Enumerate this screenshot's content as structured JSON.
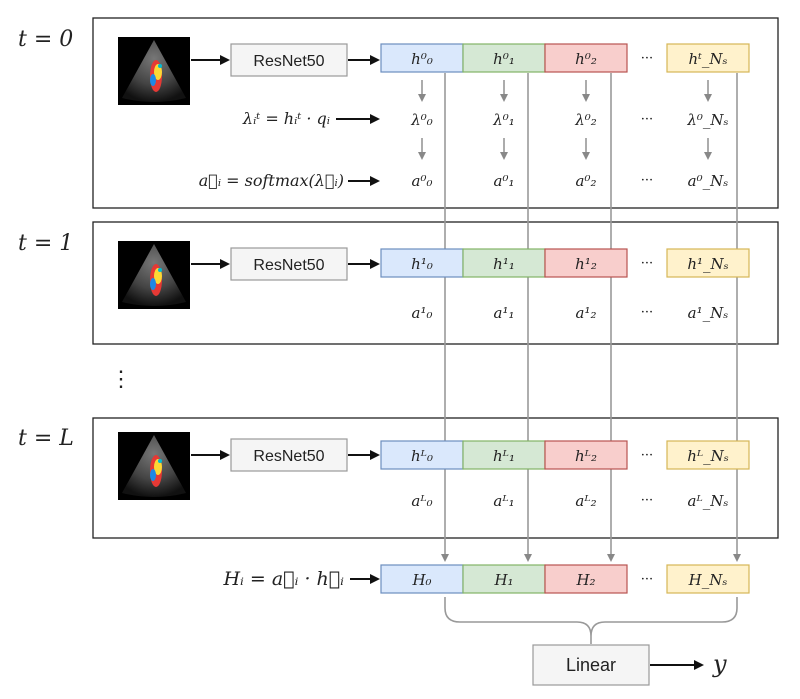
{
  "colors": {
    "blue_fill": "#dae8fc",
    "blue_stroke": "#6c8ebf",
    "green_fill": "#d5e8d4",
    "green_stroke": "#82b366",
    "red_fill": "#f8cecc",
    "red_stroke": "#b85450",
    "yellow_fill": "#fff2cc",
    "yellow_stroke": "#d6b656",
    "resnet_fill": "#f5f5f5",
    "resnet_stroke": "#999999",
    "frame_stroke": "#222222",
    "arrow": "#888888"
  },
  "encoder_label": "ResNet50",
  "ellipsis_h": "···",
  "ellipsis_v": "⋮",
  "steps": [
    {
      "t_label": "t = 0",
      "h": [
        "h⁰₀",
        "h⁰₁",
        "h⁰₂",
        "hᵗ_Nₛ"
      ],
      "lambda_formula": "λᵢᵗ = hᵢᵗ · qᵢ",
      "lambdas": [
        "λ⁰₀",
        "λ⁰₁",
        "λ⁰₂",
        "λ⁰_Nₛ"
      ],
      "a_formula": "a⃗ᵢ = softmax(λ⃗ᵢ)",
      "a": [
        "a⁰₀",
        "a⁰₁",
        "a⁰₂",
        "a⁰_Nₛ"
      ]
    },
    {
      "t_label": "t = 1",
      "h": [
        "h¹₀",
        "h¹₁",
        "h¹₂",
        "h¹_Nₛ"
      ],
      "a": [
        "a¹₀",
        "a¹₁",
        "a¹₂",
        "a¹_Nₛ"
      ]
    },
    {
      "t_label": "t = L",
      "h": [
        "hᴸ₀",
        "hᴸ₁",
        "hᴸ₂",
        "hᴸ_Nₛ"
      ],
      "a": [
        "aᴸ₀",
        "aᴸ₁",
        "aᴸ₂",
        "aᴸ_Nₛ"
      ]
    }
  ],
  "combine": {
    "formula": "Hᵢ = a⃗ᵢ · h⃗ᵢ",
    "H": [
      "H₀",
      "H₁",
      "H₂",
      "H_Nₛ"
    ]
  },
  "output": {
    "linear_label": "Linear",
    "y_label": "y"
  }
}
